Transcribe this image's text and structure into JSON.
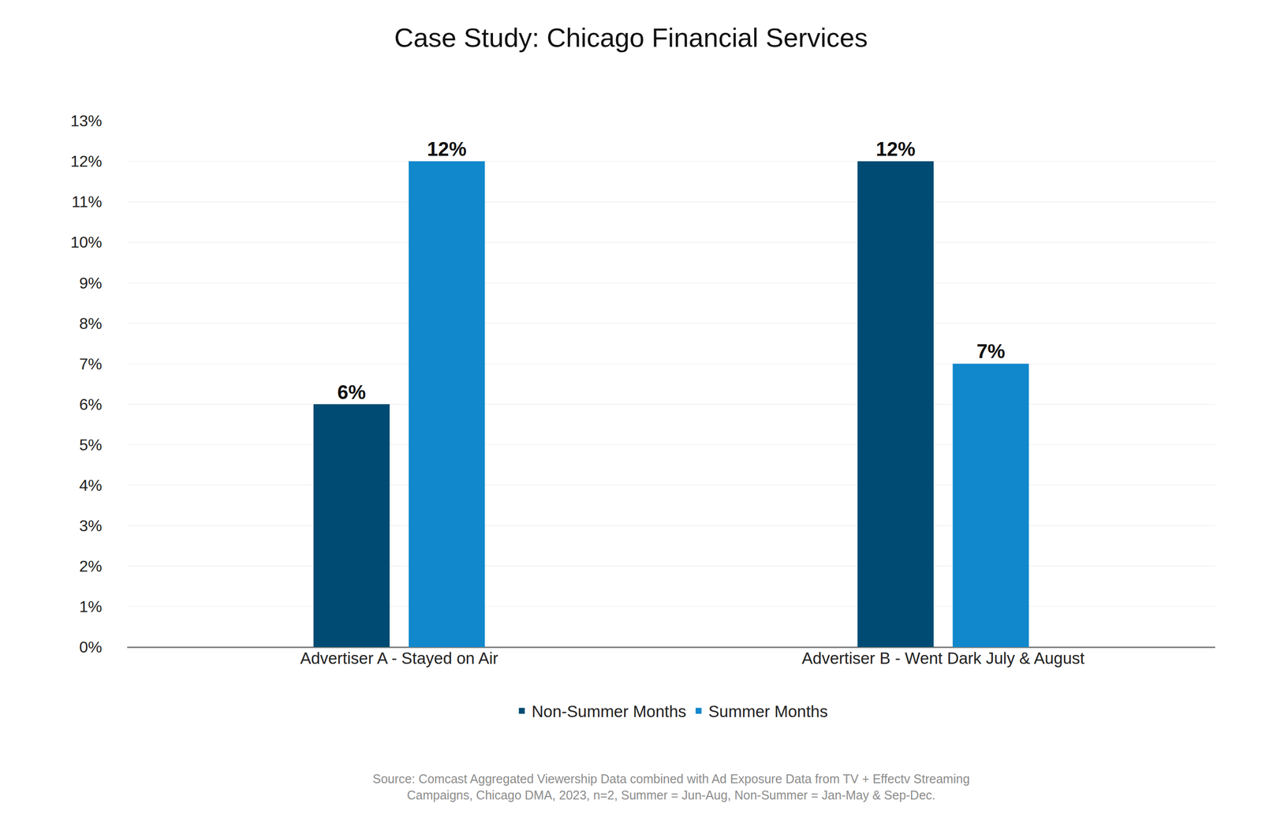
{
  "chart_data": {
    "type": "bar",
    "title": "Case Study: Chicago Financial Services",
    "categories": [
      "Advertiser A - Stayed on Air",
      "Advertiser B - Went Dark July & August"
    ],
    "series": [
      {
        "name": "Non-Summer Months",
        "color": "#004b73",
        "values": [
          6,
          12
        ],
        "value_labels": [
          "6%",
          "12%"
        ]
      },
      {
        "name": "Summer Months",
        "color": "#1188cc",
        "values": [
          12,
          7
        ],
        "value_labels": [
          "12%",
          "7%"
        ]
      }
    ],
    "ylim": [
      0,
      13
    ],
    "yticks": [
      {
        "value": 0,
        "label": "0%"
      },
      {
        "value": 1,
        "label": "1%"
      },
      {
        "value": 2,
        "label": "2%"
      },
      {
        "value": 3,
        "label": "3%"
      },
      {
        "value": 4,
        "label": "4%"
      },
      {
        "value": 5,
        "label": "5%"
      },
      {
        "value": 6,
        "label": "6%"
      },
      {
        "value": 7,
        "label": "7%"
      },
      {
        "value": 8,
        "label": "8%"
      },
      {
        "value": 9,
        "label": "9%"
      },
      {
        "value": 10,
        "label": "10%"
      },
      {
        "value": 11,
        "label": "11%"
      },
      {
        "value": 12,
        "label": "12%"
      },
      {
        "value": 13,
        "label": "13%"
      }
    ],
    "grid": true,
    "legend": "bottom",
    "data_labels": true,
    "annotations": [
      "Source: Comcast Aggregated Viewership Data combined with Ad Exposure Data from TV + Effectv Streaming",
      "Campaigns, Chicago DMA, 2023, n=2, Summer = Jun-Aug, Non-Summer = Jan-May & Sep-Dec."
    ]
  }
}
